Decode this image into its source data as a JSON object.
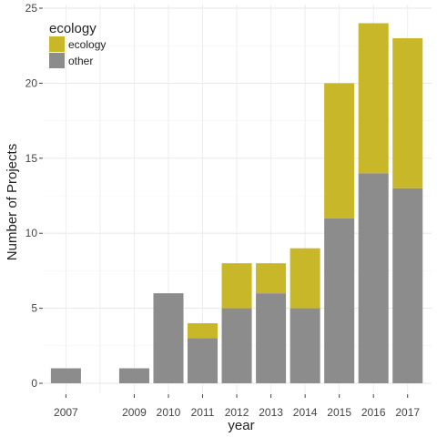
{
  "chart_data": {
    "type": "bar",
    "stacked": true,
    "categories": [
      "2007",
      "2009",
      "2010",
      "2011",
      "2012",
      "2013",
      "2014",
      "2015",
      "2016",
      "2017"
    ],
    "x": [
      2007,
      2009,
      2010,
      2011,
      2012,
      2013,
      2014,
      2015,
      2016,
      2017
    ],
    "series": [
      {
        "name": "other",
        "color": "#8c8c8c",
        "values": [
          1,
          1,
          6,
          3,
          5,
          6,
          5,
          11,
          14,
          13
        ]
      },
      {
        "name": "ecology",
        "color": "#c8b728",
        "values": [
          0,
          0,
          0,
          1,
          3,
          2,
          4,
          9,
          10,
          10
        ]
      }
    ],
    "xlabel": "year",
    "ylabel": "Number of Projects",
    "ylim": [
      0,
      25
    ],
    "yticks": [
      0,
      5,
      10,
      15,
      20,
      25
    ],
    "grid": true,
    "legend": {
      "title": "ecology",
      "placement": "top-left",
      "entries": [
        "ecology",
        "other"
      ]
    }
  }
}
